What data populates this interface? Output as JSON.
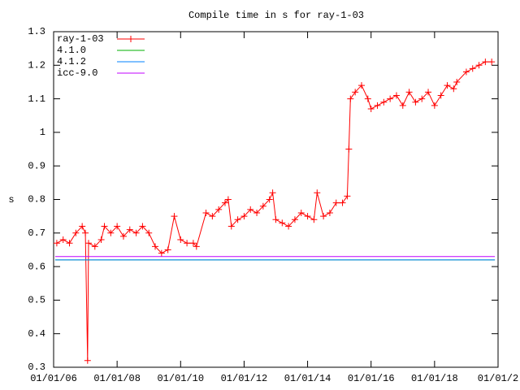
{
  "chart_data": {
    "type": "line",
    "title": "Compile time in s for ray-1-03",
    "ylabel": "s",
    "xlim": [
      2006,
      2020
    ],
    "ylim": [
      0.3,
      1.3
    ],
    "xticks": [
      {
        "value": 2006,
        "label": "01/01/06"
      },
      {
        "value": 2008,
        "label": "01/01/08"
      },
      {
        "value": 2010,
        "label": "01/01/10"
      },
      {
        "value": 2012,
        "label": "01/01/12"
      },
      {
        "value": 2014,
        "label": "01/01/14"
      },
      {
        "value": 2016,
        "label": "01/01/16"
      },
      {
        "value": 2018,
        "label": "01/01/18"
      },
      {
        "value": 2020,
        "label": "01/01/2"
      }
    ],
    "yticks": [
      0.3,
      0.4,
      0.5,
      0.6,
      0.7,
      0.8,
      0.9,
      1,
      1.1,
      1.2,
      1.3
    ],
    "legend": "top-left",
    "series": [
      {
        "name": "ray-1-03",
        "color": "#ff0000",
        "markers": true,
        "x": [
          2006.1,
          2006.3,
          2006.5,
          2006.7,
          2006.9,
          2007.0,
          2007.07,
          2007.1,
          2007.3,
          2007.5,
          2007.6,
          2007.8,
          2008.0,
          2008.2,
          2008.4,
          2008.6,
          2008.8,
          2009.0,
          2009.2,
          2009.4,
          2009.6,
          2009.8,
          2010.0,
          2010.2,
          2010.4,
          2010.5,
          2010.8,
          2011.0,
          2011.2,
          2011.4,
          2011.5,
          2011.6,
          2011.8,
          2012.0,
          2012.2,
          2012.4,
          2012.6,
          2012.8,
          2012.9,
          2013.0,
          2013.2,
          2013.4,
          2013.6,
          2013.8,
          2014.0,
          2014.2,
          2014.3,
          2014.5,
          2014.7,
          2014.9,
          2015.1,
          2015.25,
          2015.3,
          2015.35,
          2015.5,
          2015.7,
          2015.9,
          2016.0,
          2016.2,
          2016.4,
          2016.6,
          2016.8,
          2017.0,
          2017.2,
          2017.4,
          2017.6,
          2017.8,
          2018.0,
          2018.2,
          2018.4,
          2018.6,
          2018.7,
          2019.0,
          2019.2,
          2019.4,
          2019.6,
          2019.8
        ],
        "values": [
          0.67,
          0.68,
          0.67,
          0.7,
          0.72,
          0.7,
          0.32,
          0.67,
          0.66,
          0.68,
          0.72,
          0.7,
          0.72,
          0.69,
          0.71,
          0.7,
          0.72,
          0.7,
          0.66,
          0.64,
          0.65,
          0.75,
          0.68,
          0.67,
          0.67,
          0.66,
          0.76,
          0.75,
          0.77,
          0.79,
          0.8,
          0.72,
          0.74,
          0.75,
          0.77,
          0.76,
          0.78,
          0.8,
          0.82,
          0.74,
          0.73,
          0.72,
          0.74,
          0.76,
          0.75,
          0.74,
          0.82,
          0.75,
          0.76,
          0.79,
          0.79,
          0.81,
          0.95,
          1.1,
          1.12,
          1.14,
          1.1,
          1.07,
          1.08,
          1.09,
          1.1,
          1.11,
          1.08,
          1.12,
          1.09,
          1.1,
          1.12,
          1.08,
          1.11,
          1.14,
          1.13,
          1.15,
          1.18,
          1.19,
          1.2,
          1.21,
          1.21
        ]
      },
      {
        "name": "4.1.0",
        "color": "#00b000",
        "x": [
          2006.05,
          2019.9
        ],
        "values": [
          0.62,
          0.62
        ]
      },
      {
        "name": "4.1.2",
        "color": "#0080ff",
        "x": [
          2006.05,
          2019.9
        ],
        "values": [
          0.62,
          0.62
        ]
      },
      {
        "name": "icc-9.0",
        "color": "#c000ff",
        "x": [
          2006.05,
          2019.9
        ],
        "values": [
          0.63,
          0.63
        ]
      }
    ]
  }
}
